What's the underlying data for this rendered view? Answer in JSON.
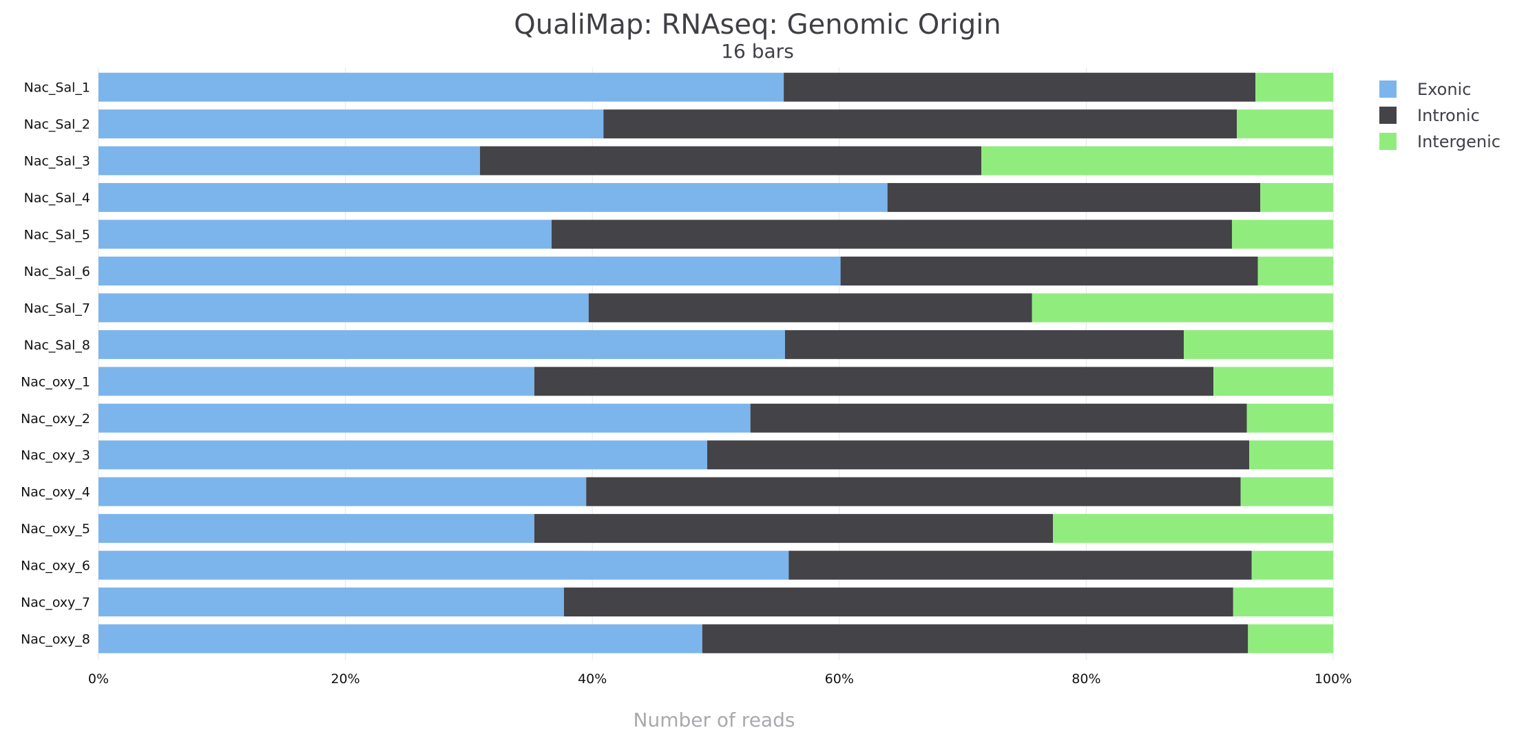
{
  "chart_data": {
    "type": "bar",
    "orientation": "horizontal",
    "stacked": true,
    "percent": true,
    "title": "QualiMap: RNAseq: Genomic Origin",
    "subtitle": "16 bars",
    "xlabel": "Number of reads",
    "ylabel": "",
    "xlim": [
      0,
      100
    ],
    "x_ticks": [
      "0%",
      "20%",
      "40%",
      "60%",
      "80%",
      "100%"
    ],
    "x_tick_values": [
      0,
      20,
      40,
      60,
      80,
      100
    ],
    "grid": true,
    "legend_position": "right",
    "categories": [
      "Nac_Sal_1",
      "Nac_Sal_2",
      "Nac_Sal_3",
      "Nac_Sal_4",
      "Nac_Sal_5",
      "Nac_Sal_6",
      "Nac_Sal_7",
      "Nac_Sal_8",
      "Nac_oxy_1",
      "Nac_oxy_2",
      "Nac_oxy_3",
      "Nac_oxy_4",
      "Nac_oxy_5",
      "Nac_oxy_6",
      "Nac_oxy_7",
      "Nac_oxy_8"
    ],
    "series": [
      {
        "name": "Exonic",
        "color": "#7cb5ec",
        "values": [
          55.5,
          40.9,
          30.9,
          63.9,
          36.7,
          60.1,
          39.7,
          55.6,
          35.3,
          52.8,
          49.3,
          39.5,
          35.3,
          55.9,
          37.7,
          48.9
        ]
      },
      {
        "name": "Intronic",
        "color": "#434348",
        "values": [
          38.2,
          51.3,
          40.6,
          30.2,
          55.1,
          33.8,
          35.9,
          32.3,
          55.0,
          40.2,
          43.9,
          53.0,
          42.0,
          37.5,
          54.2,
          44.2
        ]
      },
      {
        "name": "Intergenic",
        "color": "#90ed7d",
        "values": [
          6.3,
          7.8,
          28.5,
          5.9,
          8.2,
          6.1,
          24.4,
          12.1,
          9.7,
          7.0,
          6.8,
          7.5,
          22.7,
          6.6,
          8.1,
          6.9
        ]
      }
    ]
  }
}
